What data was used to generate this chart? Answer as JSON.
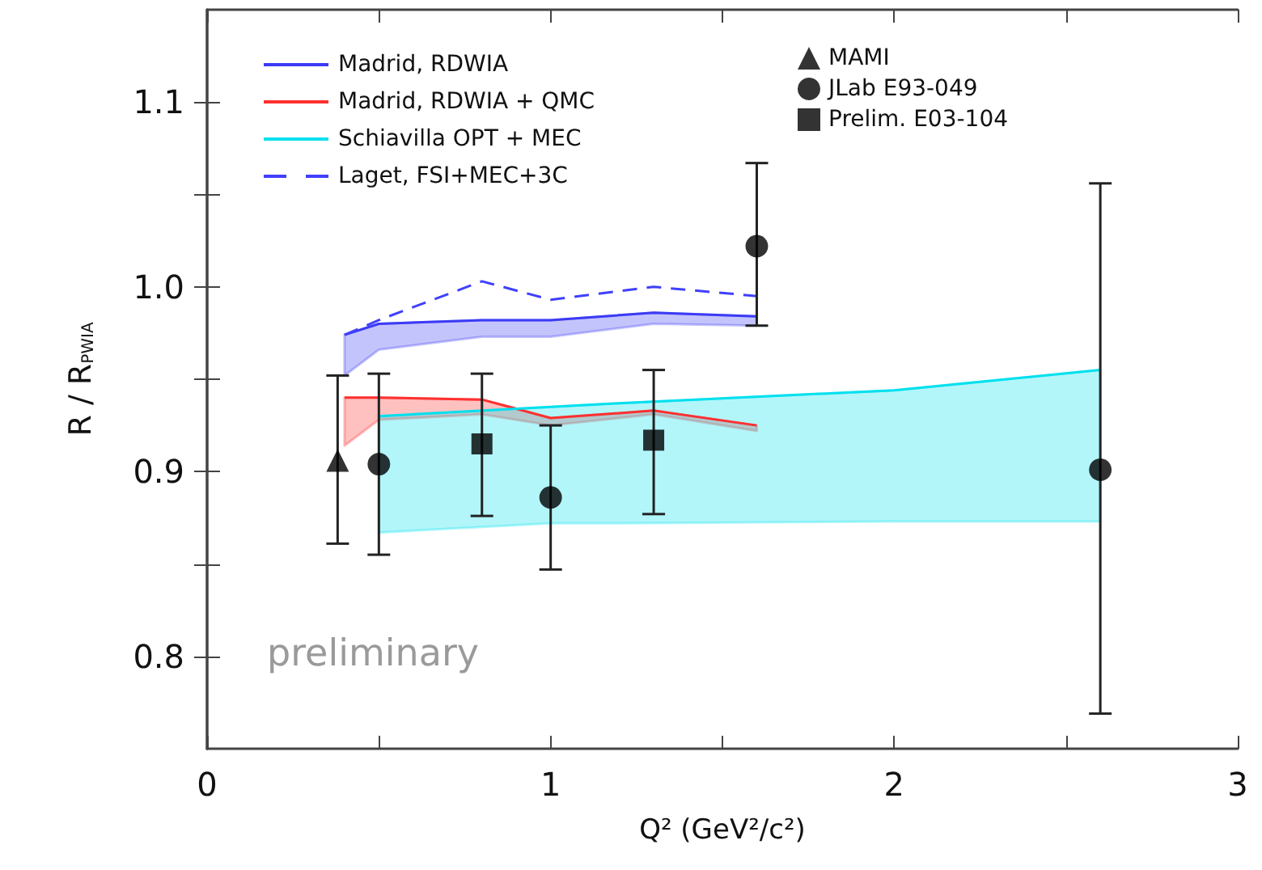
{
  "chart_data": {
    "type": "line",
    "xlabel": "Q² (GeV²/c²)",
    "ylabel": "R / R$_{PWIA}$",
    "xlim": [
      0,
      3
    ],
    "xticks": [
      0,
      {
        "value": 0.5,
        "label": null
      },
      1,
      {
        "value": 1.5,
        "label": null
      },
      2,
      {
        "value": 2.5,
        "label": null
      },
      3
    ],
    "ylim": [
      0.75,
      1.15
    ],
    "yticks": [
      {
        "value": 0.8,
        "label": "0.8"
      },
      {
        "value": 0.85,
        "label": null
      },
      {
        "value": 0.9,
        "label": "0.9"
      },
      {
        "value": 0.95,
        "label": null
      },
      {
        "value": 1.0,
        "label": "1.0"
      },
      {
        "value": 1.05,
        "label": null
      },
      {
        "value": 1.1,
        "label": "1.1"
      }
    ],
    "grid": false,
    "legend": "top",
    "annotations": [
      "preliminary"
    ],
    "series": [
      {
        "name": "Madrid, RDWIA",
        "color": "#3b3bf5",
        "x": [
          0.4,
          0.5,
          0.8,
          1.0,
          1.3,
          1.6
        ],
        "values": [
          0.974,
          0.98,
          0.982,
          0.982,
          0.986,
          0.984
        ],
        "upper": [
          0.974,
          0.98,
          0.982,
          0.982,
          0.986,
          0.984
        ],
        "lower": [
          0.952,
          0.966,
          0.973,
          0.973,
          0.98,
          0.979
        ]
      },
      {
        "name": "Madrid, RDWIA + QMC",
        "color": "#ff3030",
        "x": [
          0.4,
          0.5,
          0.8,
          0.9,
          1.0,
          1.3,
          1.6
        ],
        "values": [
          0.94,
          0.94,
          0.939,
          0.934,
          0.929,
          0.933,
          0.925
        ],
        "upper": [
          0.94,
          0.94,
          0.939,
          0.934,
          0.929,
          0.933,
          0.925
        ],
        "lower": [
          0.914,
          0.928,
          0.931,
          0.928,
          0.925,
          0.931,
          0.922
        ]
      },
      {
        "name": "Schiavilla OPT + MEC",
        "color": "#00e0ee",
        "x": [
          0.5,
          1.0,
          1.2,
          2.0,
          2.6
        ],
        "values": [
          0.93,
          0.935,
          0.937,
          0.944,
          0.955
        ],
        "upper": [
          0.93,
          0.935,
          0.937,
          0.944,
          0.955
        ],
        "lower": [
          0.867,
          0.872,
          0.872,
          0.873,
          0.873
        ]
      },
      {
        "name": "Laget, FSI+MEC+3C",
        "line_style": "dashed",
        "color": "#4040ff",
        "x": [
          0.4,
          0.5,
          0.8,
          1.0,
          1.3,
          1.6
        ],
        "values": [
          0.974,
          0.982,
          1.003,
          0.993,
          1.0,
          0.995
        ]
      },
      {
        "name": "MAMI",
        "type": "scatter",
        "marker": "triangle",
        "color": "#000000",
        "x": [
          0.38
        ],
        "values": [
          0.906
        ],
        "errors": [
          [
            0.861,
            0.952
          ]
        ]
      },
      {
        "name": "JLab E93-049",
        "type": "scatter",
        "marker": "circle",
        "color": "#000000",
        "x": [
          0.5,
          1.0,
          1.6,
          2.6
        ],
        "values": [
          0.904,
          0.886,
          1.022,
          0.901
        ],
        "errors": [
          [
            0.855,
            0.953
          ],
          [
            0.847,
            0.925
          ],
          [
            0.979,
            1.067
          ],
          [
            0.769,
            1.056
          ]
        ]
      },
      {
        "name": "Prelim. E03-104",
        "type": "scatter",
        "marker": "square",
        "color": "#000000",
        "x": [
          0.8,
          1.3
        ],
        "values": [
          0.915,
          0.917
        ],
        "errors": [
          [
            0.876,
            0.953
          ],
          [
            0.877,
            0.955
          ]
        ]
      }
    ]
  }
}
